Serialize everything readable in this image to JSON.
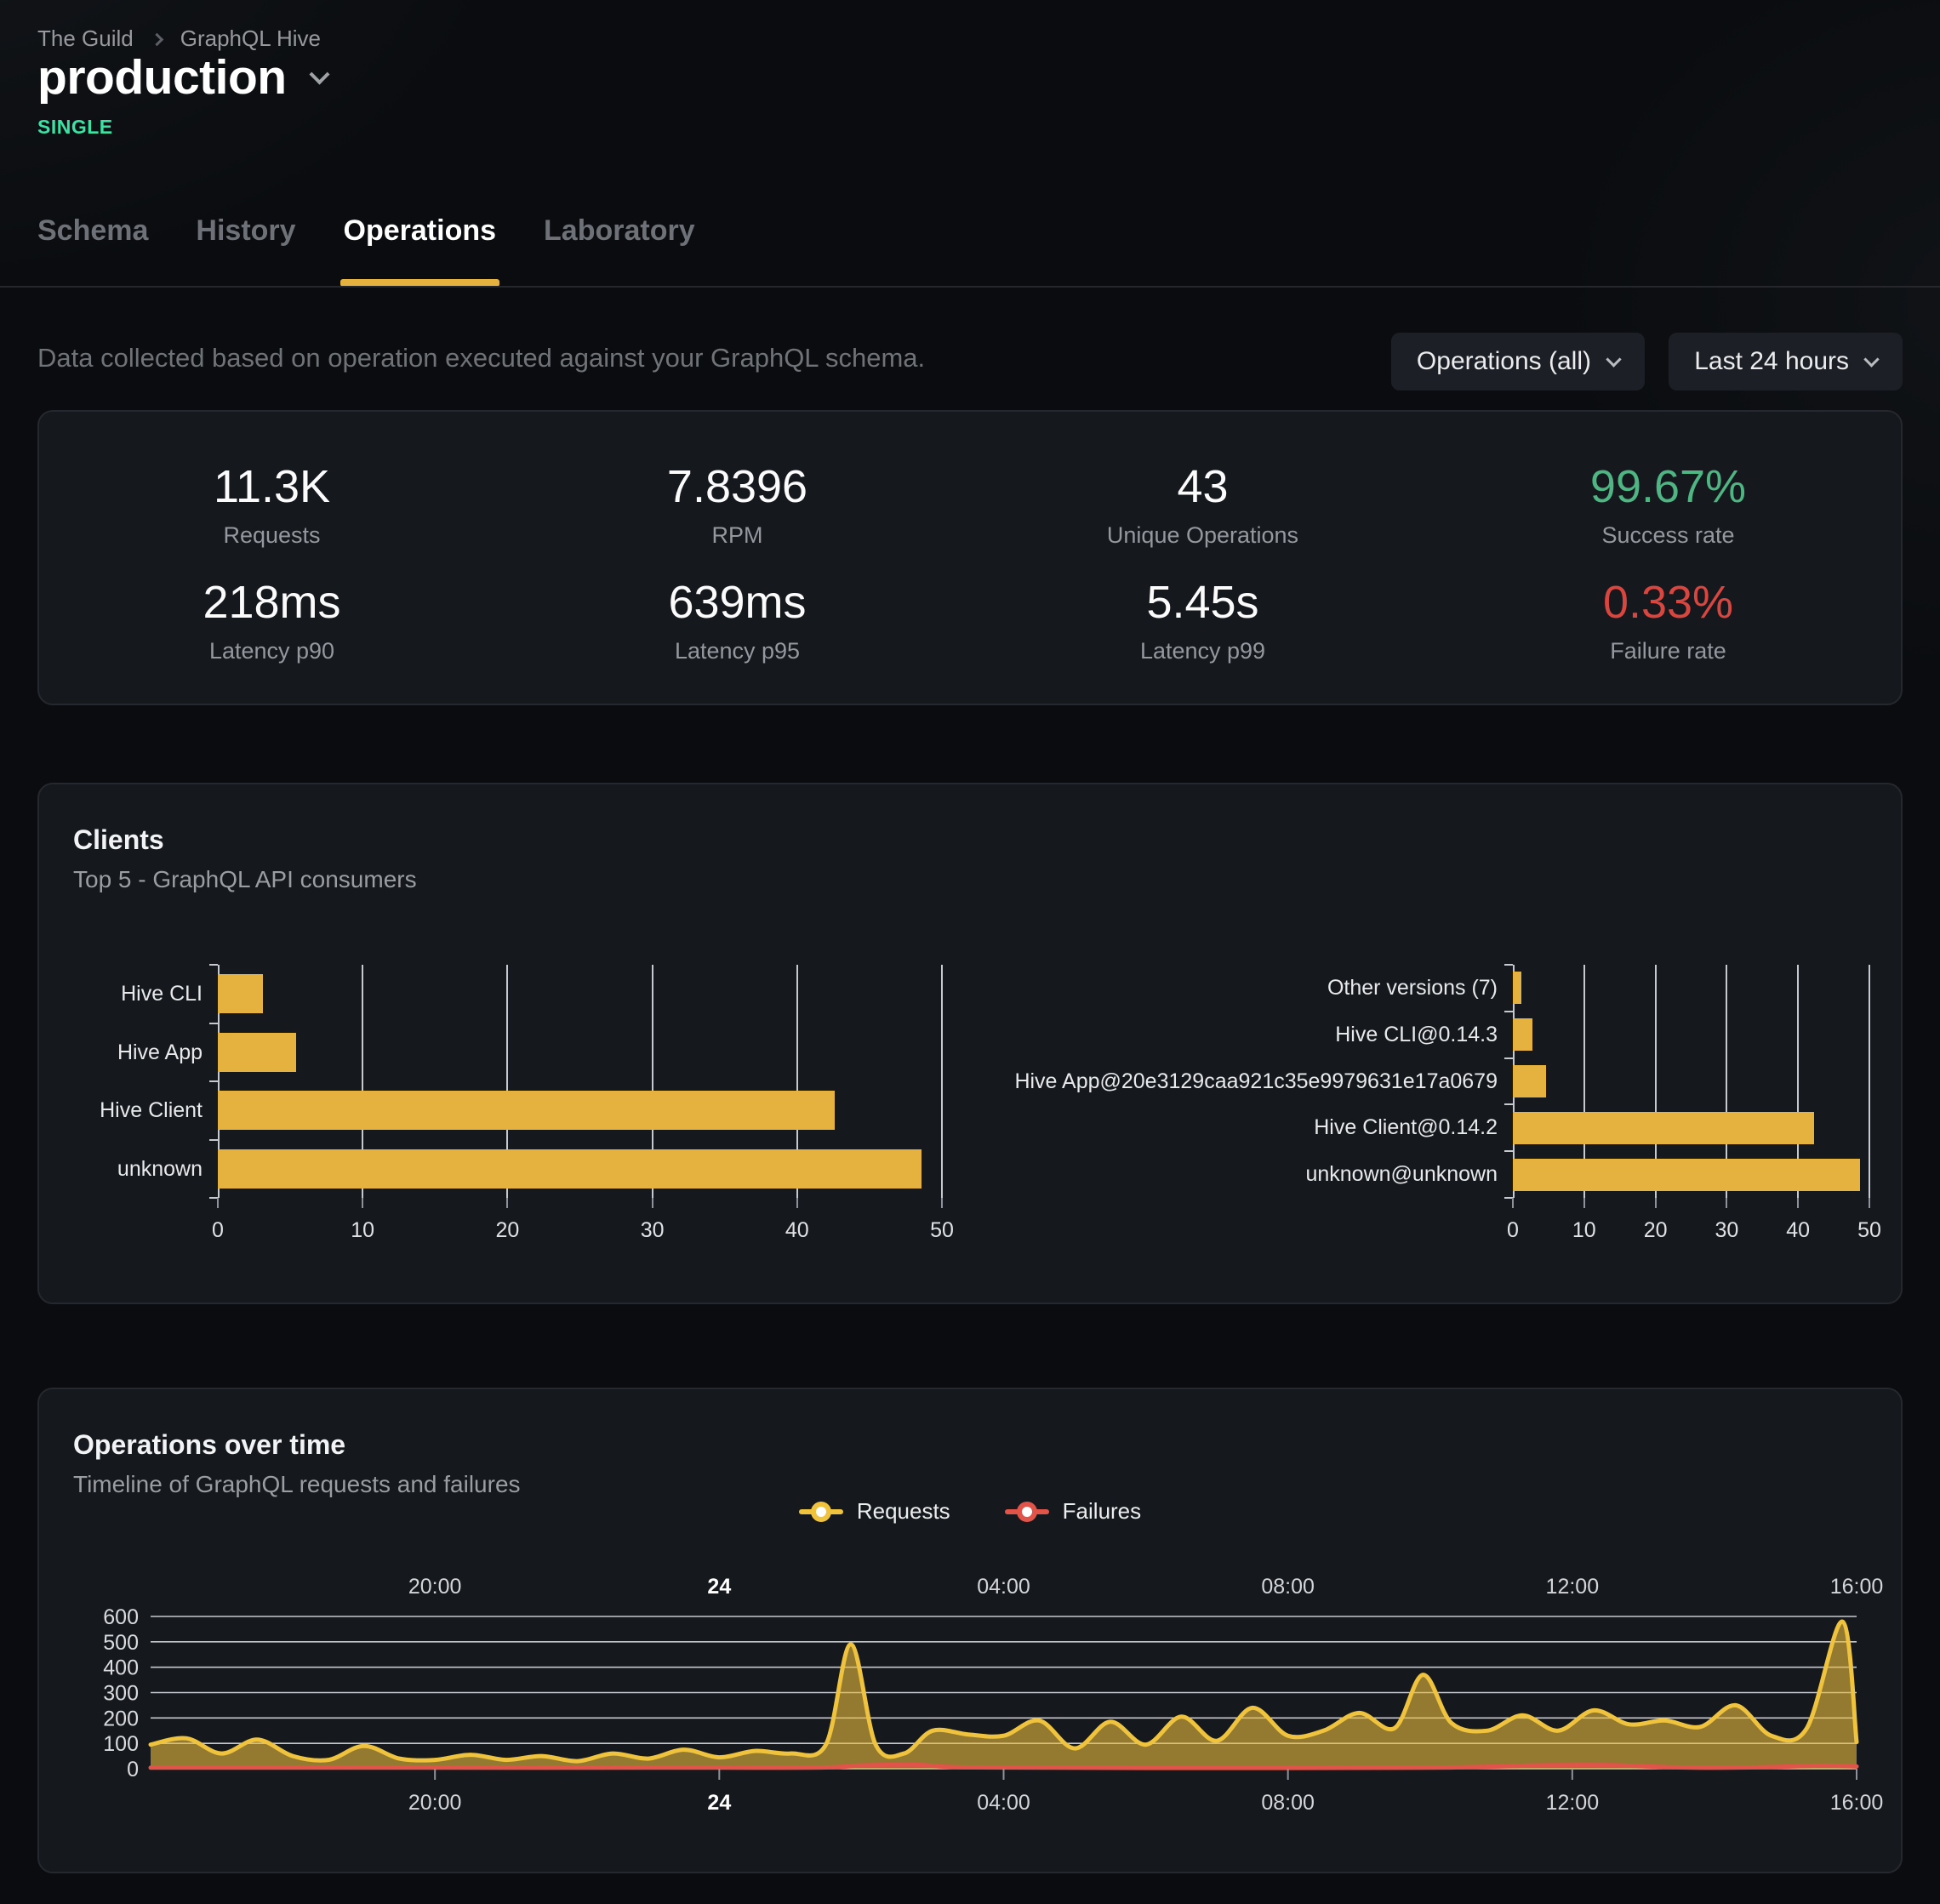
{
  "breadcrumb": {
    "org": "The Guild",
    "project": "GraphQL Hive"
  },
  "header": {
    "target": "production",
    "badge": "SINGLE"
  },
  "tabs": [
    {
      "label": "Schema",
      "active": false
    },
    {
      "label": "History",
      "active": false
    },
    {
      "label": "Operations",
      "active": true
    },
    {
      "label": "Laboratory",
      "active": false
    }
  ],
  "toolbar": {
    "description": "Data collected based on operation executed against your GraphQL schema.",
    "filters": [
      {
        "label": "Operations (all)"
      },
      {
        "label": "Last 24 hours"
      }
    ]
  },
  "stats": [
    {
      "value": "11.3K",
      "label": "Requests"
    },
    {
      "value": "7.8396",
      "label": "RPM"
    },
    {
      "value": "43",
      "label": "Unique Operations"
    },
    {
      "value": "99.67%",
      "label": "Success rate",
      "color": "#4fb583"
    },
    {
      "value": "218ms",
      "label": "Latency p90"
    },
    {
      "value": "639ms",
      "label": "Latency p95"
    },
    {
      "value": "5.45s",
      "label": "Latency p99"
    },
    {
      "value": "0.33%",
      "label": "Failure rate",
      "color": "#d8463f"
    }
  ],
  "clients": {
    "title": "Clients",
    "subtitle": "Top 5 - GraphQL API consumers"
  },
  "operations": {
    "title": "Operations over time",
    "subtitle": "Timeline of GraphQL requests and failures",
    "legend": [
      {
        "label": "Requests",
        "color": "#efc33e"
      },
      {
        "label": "Failures",
        "color": "#e0544a"
      }
    ]
  },
  "colors": {
    "accent": "#e6b23f",
    "badge": "#3ce2a3",
    "success": "#4fb583",
    "failure": "#d8463f"
  },
  "chart_data": [
    {
      "id": "clients-top5",
      "type": "bar",
      "orientation": "horizontal",
      "categories": [
        "Hive CLI",
        "Hive App",
        "Hive Client",
        "unknown"
      ],
      "values": [
        3.1,
        5.4,
        42.6,
        48.6
      ],
      "xlim": [
        0,
        50
      ],
      "xticks": [
        0,
        10,
        20,
        30,
        40,
        50
      ],
      "bar_color": "#e6b23f",
      "grid": true
    },
    {
      "id": "clients-top5-versions",
      "type": "bar",
      "orientation": "horizontal",
      "categories": [
        "Other versions (7)",
        "Hive CLI@0.14.3",
        "Hive App@20e3129caa921c35e9979631e17a0679",
        "Hive Client@0.14.2",
        "unknown@unknown"
      ],
      "values": [
        1.2,
        2.7,
        4.6,
        42.2,
        48.7
      ],
      "xlim": [
        0,
        50
      ],
      "xticks": [
        0,
        10,
        20,
        30,
        40,
        50
      ],
      "bar_color": "#e6b23f",
      "grid": true
    },
    {
      "id": "operations-over-time",
      "type": "area",
      "title": "Operations over time",
      "x_axis": {
        "range_hours": 24,
        "ticks": [
          {
            "pos": 4,
            "label": "20:00"
          },
          {
            "pos": 8,
            "label": "24",
            "bold": true
          },
          {
            "pos": 12,
            "label": "04:00"
          },
          {
            "pos": 16,
            "label": "08:00"
          },
          {
            "pos": 20,
            "label": "12:00"
          },
          {
            "pos": 24,
            "label": "16:00"
          }
        ]
      },
      "ylim": [
        0,
        600
      ],
      "yticks": [
        0,
        100,
        200,
        300,
        400,
        500,
        600
      ],
      "grid": true,
      "legend_position": "top",
      "series": [
        {
          "name": "Requests",
          "color": "#efc33e",
          "fill": "rgba(233,186,61,0.60)",
          "points": [
            [
              0,
              95
            ],
            [
              0.5,
              120
            ],
            [
              1,
              60
            ],
            [
              1.5,
              115
            ],
            [
              2,
              50
            ],
            [
              2.5,
              35
            ],
            [
              3,
              90
            ],
            [
              3.5,
              40
            ],
            [
              4,
              35
            ],
            [
              4.5,
              55
            ],
            [
              5,
              35
            ],
            [
              5.5,
              50
            ],
            [
              6,
              30
            ],
            [
              6.5,
              60
            ],
            [
              7,
              40
            ],
            [
              7.5,
              75
            ],
            [
              8,
              45
            ],
            [
              8.5,
              70
            ],
            [
              9,
              60
            ],
            [
              9.5,
              95
            ],
            [
              9.85,
              490
            ],
            [
              10.2,
              95
            ],
            [
              10.6,
              60
            ],
            [
              11,
              150
            ],
            [
              11.5,
              135
            ],
            [
              12,
              130
            ],
            [
              12.5,
              190
            ],
            [
              13,
              80
            ],
            [
              13.5,
              185
            ],
            [
              14,
              95
            ],
            [
              14.5,
              205
            ],
            [
              15,
              110
            ],
            [
              15.5,
              240
            ],
            [
              16,
              130
            ],
            [
              16.5,
              150
            ],
            [
              17,
              220
            ],
            [
              17.5,
              160
            ],
            [
              17.9,
              370
            ],
            [
              18.3,
              180
            ],
            [
              18.8,
              150
            ],
            [
              19.3,
              210
            ],
            [
              19.8,
              150
            ],
            [
              20.3,
              230
            ],
            [
              20.8,
              175
            ],
            [
              21.3,
              190
            ],
            [
              21.8,
              165
            ],
            [
              22.3,
              250
            ],
            [
              22.8,
              130
            ],
            [
              23.3,
              160
            ],
            [
              23.8,
              580
            ],
            [
              24,
              105
            ]
          ]
        },
        {
          "name": "Failures",
          "color": "#e0544a",
          "points": [
            [
              0,
              4
            ],
            [
              4,
              4
            ],
            [
              8,
              4
            ],
            [
              9.5,
              5
            ],
            [
              10,
              13
            ],
            [
              10.8,
              15
            ],
            [
              11.5,
              5
            ],
            [
              14,
              3
            ],
            [
              18,
              4
            ],
            [
              19.5,
              13
            ],
            [
              20.5,
              14
            ],
            [
              21.5,
              5
            ],
            [
              22.5,
              5
            ],
            [
              23.5,
              12
            ],
            [
              24,
              9
            ]
          ]
        }
      ]
    }
  ]
}
